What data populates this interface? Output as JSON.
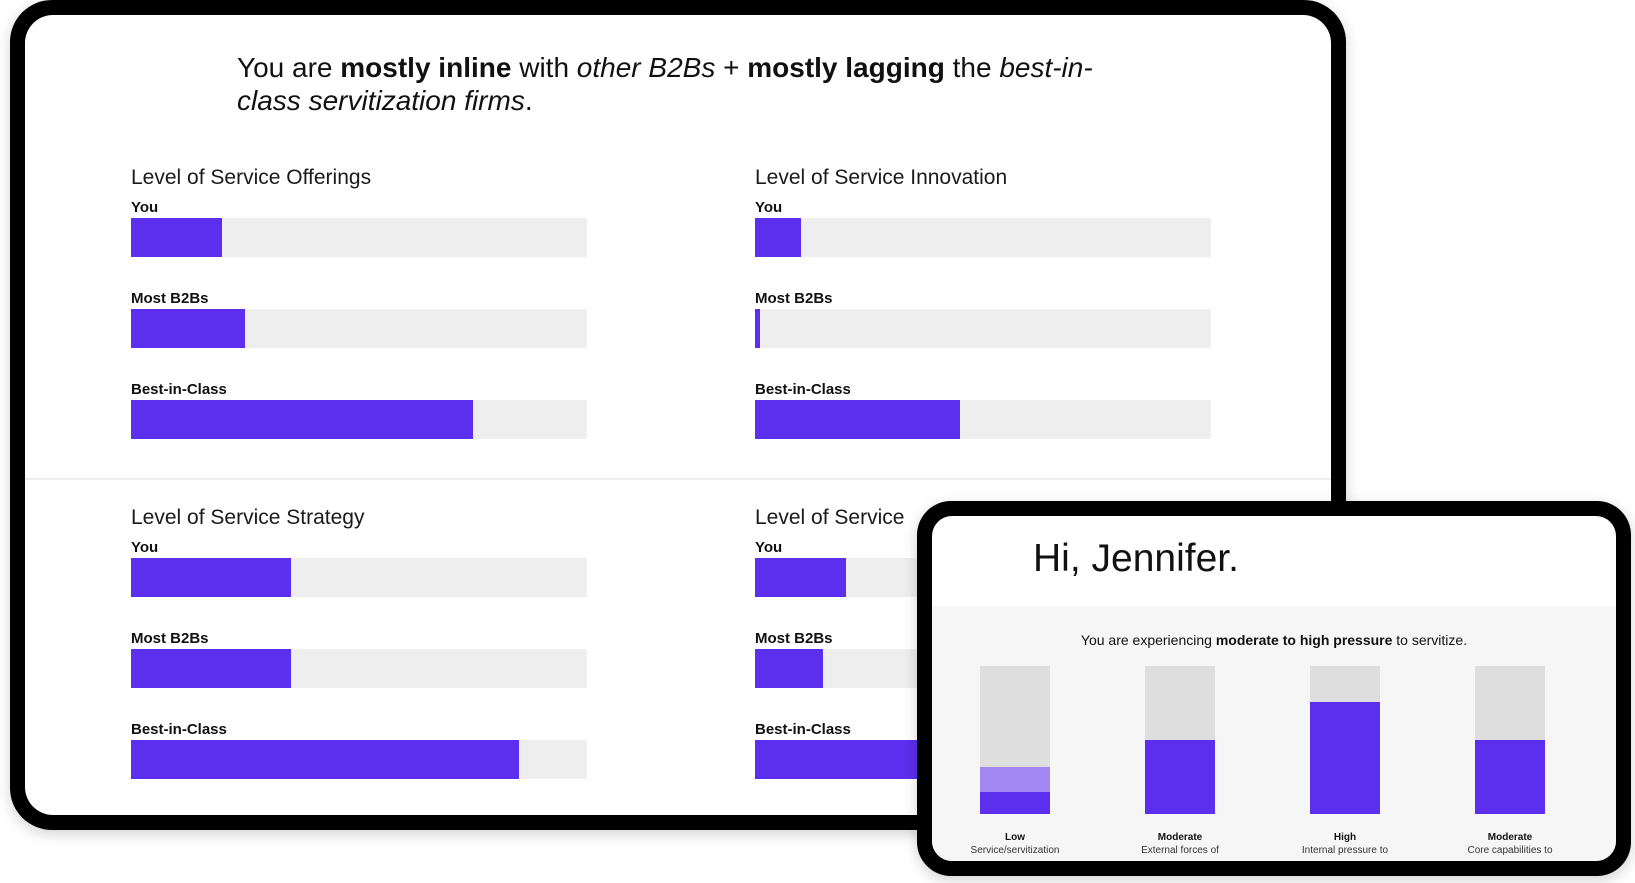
{
  "headline": {
    "t1": "You are ",
    "t2": "mostly inline",
    "t3": " with ",
    "t4": "other B2Bs",
    "t5": " + ",
    "t6": "mostly lagging",
    "t7": " the ",
    "t8": "best-in-class servitization firms",
    "t9": "."
  },
  "metrics": [
    {
      "title": "Level of Service Offerings",
      "bars": [
        {
          "label": "You",
          "value": 0.2
        },
        {
          "label": "Most B2Bs",
          "value": 0.25
        },
        {
          "label": "Best-in-Class",
          "value": 0.75
        }
      ]
    },
    {
      "title": "Level of Service Innovation",
      "bars": [
        {
          "label": "You",
          "value": 0.1
        },
        {
          "label": "Most B2Bs",
          "value": 0.01
        },
        {
          "label": "Best-in-Class",
          "value": 0.45
        }
      ]
    },
    {
      "title": "Level of Service Strategy",
      "bars": [
        {
          "label": "You",
          "value": 0.35
        },
        {
          "label": "Most B2Bs",
          "value": 0.35
        },
        {
          "label": "Best-in-Class",
          "value": 0.85
        }
      ]
    },
    {
      "title": "Level of Service",
      "bars": [
        {
          "label": "You",
          "value": 0.2
        },
        {
          "label": "Most B2Bs",
          "value": 0.15
        },
        {
          "label": "Best-in-Class",
          "value": 0.8
        }
      ]
    }
  ],
  "phone": {
    "greeting": "Hi, Jennifer.",
    "pressure_pre": "You are experiencing ",
    "pressure_bold": "moderate to high pressure",
    "pressure_post": " to servitize.",
    "columns": [
      {
        "level": "Low",
        "desc": "Service/servitization",
        "value": 0.15,
        "light": 0.32
      },
      {
        "level": "Moderate",
        "desc": "External forces of",
        "value": 0.5
      },
      {
        "level": "High",
        "desc": "Internal pressure to",
        "value": 0.76
      },
      {
        "level": "Moderate",
        "desc": "Core capabilities to",
        "value": 0.5
      }
    ]
  },
  "colors": {
    "accent": "#5c2eed",
    "accent_light": "#a287f2",
    "track": "#eeeeee"
  }
}
